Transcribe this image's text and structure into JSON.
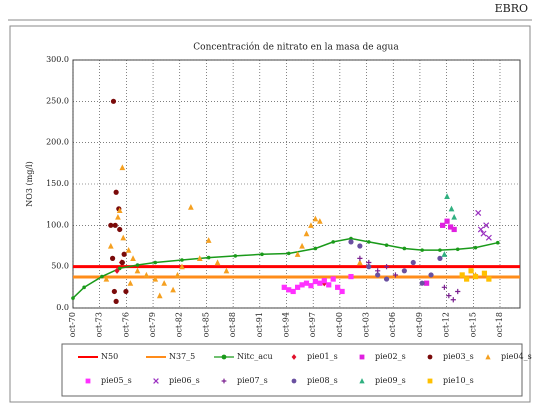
{
  "header": {
    "title": "EBRO"
  },
  "chart_data": {
    "type": "scatter",
    "title": "Concentración de nitrato en la masa de agua",
    "y_label": "NO3 (mg/l)",
    "xlim": [
      1970.75,
      2021
    ],
    "xticks": [
      {
        "value": 1970.75,
        "label": "oct-70"
      },
      {
        "value": 1973.75,
        "label": "oct-73"
      },
      {
        "value": 1976.75,
        "label": "oct-76"
      },
      {
        "value": 1979.75,
        "label": "oct-79"
      },
      {
        "value": 1982.75,
        "label": "oct-82"
      },
      {
        "value": 1985.75,
        "label": "oct-85"
      },
      {
        "value": 1988.75,
        "label": "oct-88"
      },
      {
        "value": 1991.75,
        "label": "oct-91"
      },
      {
        "value": 1994.75,
        "label": "oct-94"
      },
      {
        "value": 1997.75,
        "label": "oct-97"
      },
      {
        "value": 2000.75,
        "label": "oct-00"
      },
      {
        "value": 2003.75,
        "label": "oct-03"
      },
      {
        "value": 2006.75,
        "label": "oct-06"
      },
      {
        "value": 2009.75,
        "label": "oct-09"
      },
      {
        "value": 2012.75,
        "label": "oct-12"
      },
      {
        "value": 2015.75,
        "label": "oct-15"
      },
      {
        "value": 2018.75,
        "label": "oct-18"
      }
    ],
    "ylim": [
      0,
      300
    ],
    "yticks": [
      {
        "value": 0,
        "label": "0.0"
      },
      {
        "value": 50,
        "label": "50.0"
      },
      {
        "value": 100,
        "label": "100.0"
      },
      {
        "value": 150,
        "label": "150.0"
      },
      {
        "value": 200,
        "label": "200.0"
      },
      {
        "value": 250,
        "label": "250.0"
      },
      {
        "value": 300,
        "label": "300.0"
      }
    ],
    "grid": true,
    "legend": "bottom",
    "series": [
      {
        "name": "N50",
        "color": "#ff0000",
        "mode": "line",
        "marker": "none",
        "x": [
          1970.75,
          2021
        ],
        "values": [
          50,
          50
        ]
      },
      {
        "name": "N37_5",
        "color": "#ff8c1a",
        "mode": "line",
        "marker": "none",
        "x": [
          1970.75,
          2021
        ],
        "values": [
          37.5,
          37.5
        ]
      },
      {
        "name": "Nitc_acu",
        "color": "#1a9a1a",
        "mode": "line-marker",
        "marker": "circle",
        "x": [
          1970.75,
          1972,
          1974,
          1976,
          1978,
          1980,
          1983,
          1986,
          1989,
          1992,
          1995,
          1998,
          2000,
          2002,
          2004,
          2006,
          2008,
          2010,
          2012,
          2014,
          2016,
          2018.5
        ],
        "values": [
          12,
          25,
          38,
          48,
          52,
          55,
          58,
          61,
          63,
          65,
          66,
          72,
          80,
          84,
          80,
          76,
          72,
          70,
          70,
          71,
          73,
          79
        ]
      },
      {
        "name": "pie01_s",
        "color": "#e0102a",
        "mode": "scatter",
        "marker": "diamond",
        "x": [
          1975.7,
          1976.2,
          1999
        ],
        "values": [
          45,
          55,
          30
        ]
      },
      {
        "name": "pie02_s",
        "color": "#e020e0",
        "mode": "scatter",
        "marker": "square",
        "x": [
          2012.3,
          2012.8,
          2013.2,
          2013.6,
          2010.5
        ],
        "values": [
          100,
          105,
          98,
          95,
          30
        ]
      },
      {
        "name": "pie03_s",
        "color": "#7a0a0a",
        "mode": "scatter",
        "marker": "circle",
        "x": [
          1975.3,
          1975.6,
          1975.9,
          1975.5,
          1976.0,
          1975.2,
          1975.4,
          1975.6,
          1976.5,
          1976.7,
          1975.0,
          1976.3
        ],
        "values": [
          250,
          140,
          120,
          100,
          95,
          60,
          20,
          8,
          65,
          20,
          100,
          55
        ]
      },
      {
        "name": "pie04_s",
        "color": "#f5a020",
        "mode": "scatter",
        "marker": "triangle",
        "x": [
          1976.3,
          1976.0,
          1975.8,
          1976.4,
          1977.0,
          1977.5,
          1978,
          1979,
          1980,
          1981,
          1982,
          1983,
          1984,
          1985,
          1986,
          1987,
          1988,
          1996,
          1996.5,
          1997,
          1997.5,
          1998,
          1998.5,
          2003,
          2016,
          1974.5,
          1975,
          1977.2,
          1980.5,
          1982.5
        ],
        "values": [
          170,
          118,
          110,
          85,
          70,
          60,
          45,
          40,
          35,
          30,
          22,
          50,
          122,
          60,
          82,
          55,
          45,
          65,
          75,
          90,
          100,
          108,
          105,
          55,
          40,
          35,
          75,
          30,
          15,
          40
        ]
      },
      {
        "name": "pie05_s",
        "color": "#ff30ff",
        "mode": "scatter",
        "marker": "square",
        "x": [
          1994.5,
          1995,
          1995.5,
          1996,
          1996.5,
          1997,
          1997.5,
          1998,
          1998.5,
          1999,
          1999.5,
          2000,
          2000.5,
          2001,
          2002
        ],
        "values": [
          25,
          22,
          20,
          25,
          28,
          30,
          27,
          32,
          30,
          33,
          28,
          35,
          25,
          20,
          38
        ]
      },
      {
        "name": "pie06_s",
        "color": "#9a30c0",
        "mode": "scatter",
        "marker": "x",
        "x": [
          2016.3,
          2016.6,
          2016.9,
          2017.2,
          2017.5
        ],
        "values": [
          115,
          95,
          90,
          100,
          85
        ]
      },
      {
        "name": "pie07_s",
        "color": "#7a2090",
        "mode": "scatter",
        "marker": "plus",
        "x": [
          2003,
          2004,
          2005,
          2006,
          2007,
          2012.5,
          2013,
          2013.5,
          2014
        ],
        "values": [
          60,
          55,
          45,
          50,
          40,
          25,
          15,
          10,
          20
        ]
      },
      {
        "name": "pie08_s",
        "color": "#6a50a0",
        "mode": "scatter",
        "marker": "circle",
        "x": [
          2002,
          2003,
          2004,
          2005,
          2006,
          2008,
          2009,
          2010,
          2011,
          2012
        ],
        "values": [
          80,
          75,
          50,
          40,
          35,
          45,
          55,
          30,
          40,
          60
        ]
      },
      {
        "name": "pie09_s",
        "color": "#30b080",
        "mode": "scatter",
        "marker": "triangle",
        "x": [
          2012.8,
          2013.3,
          2013.6,
          2012.5
        ],
        "values": [
          135,
          120,
          110,
          65
        ]
      },
      {
        "name": "pie10_s",
        "color": "#ffc000",
        "mode": "scatter",
        "marker": "square",
        "x": [
          2014.5,
          2015,
          2015.5,
          2016,
          2017,
          2017.5
        ],
        "values": [
          40,
          35,
          45,
          38,
          42,
          35
        ]
      }
    ]
  }
}
